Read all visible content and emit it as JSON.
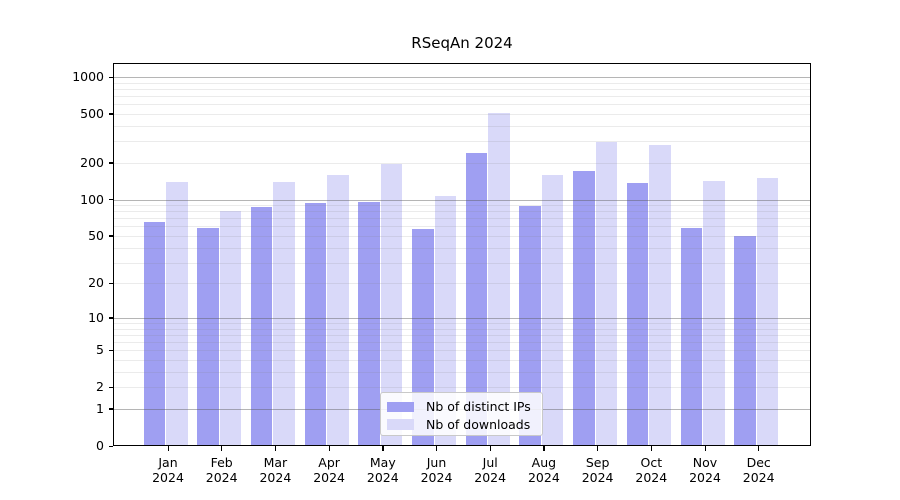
{
  "chart_data": {
    "type": "bar",
    "title": "RSeqAn 2024",
    "categories": [
      "Jan",
      "Feb",
      "Mar",
      "Apr",
      "May",
      "Jun",
      "Jul",
      "Aug",
      "Sep",
      "Oct",
      "Nov",
      "Dec"
    ],
    "category_year": "2024",
    "series": [
      {
        "name": "Nb of distinct IPs",
        "color": "#9f9ff2",
        "values": [
          65,
          58,
          86,
          94,
          96,
          57,
          240,
          88,
          170,
          137,
          58,
          50
        ]
      },
      {
        "name": "Nb of downloads",
        "color": "#d9d9f9",
        "values": [
          140,
          80,
          140,
          160,
          195,
          106,
          505,
          160,
          295,
          277,
          143,
          149
        ]
      }
    ],
    "xlabel": "",
    "ylabel": "",
    "y_scale": "log1p",
    "y_ticks": [
      0,
      1,
      2,
      5,
      10,
      20,
      50,
      100,
      200,
      500,
      1000
    ],
    "y_major_gridlines": [
      1,
      10,
      100,
      1000
    ],
    "ylim": [
      0,
      1300
    ],
    "grid": "both",
    "legend": {
      "position": "lower center",
      "entries": [
        "Nb of distinct IPs",
        "Nb of downloads"
      ]
    }
  }
}
